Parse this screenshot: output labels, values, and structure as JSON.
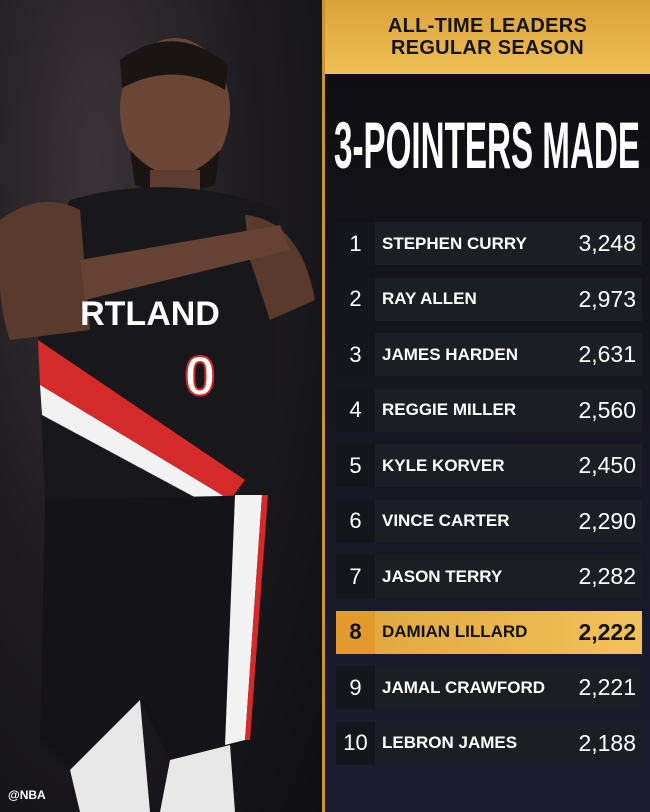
{
  "watermark": "@NBA",
  "jersey": {
    "city": "RTLAND",
    "number": "0"
  },
  "header": {
    "line1": "ALL-TIME LEADERS",
    "line2": "REGULAR SEASON"
  },
  "title": "3-POINTERS MADE",
  "colors": {
    "gold": "#efbf55",
    "panel": "#15151c",
    "highlight": "#e0a53d"
  },
  "leaders": [
    {
      "rank": "1",
      "name": "STEPHEN CURRY",
      "value": "3,248"
    },
    {
      "rank": "2",
      "name": "RAY ALLEN",
      "value": "2,973"
    },
    {
      "rank": "3",
      "name": "JAMES HARDEN",
      "value": "2,631"
    },
    {
      "rank": "4",
      "name": "REGGIE MILLER",
      "value": "2,560"
    },
    {
      "rank": "5",
      "name": "KYLE KORVER",
      "value": "2,450"
    },
    {
      "rank": "6",
      "name": "VINCE CARTER",
      "value": "2,290"
    },
    {
      "rank": "7",
      "name": "JASON TERRY",
      "value": "2,282"
    },
    {
      "rank": "8",
      "name": "DAMIAN LILLARD",
      "value": "2,222",
      "highlight": true
    },
    {
      "rank": "9",
      "name": "JAMAL CRAWFORD",
      "value": "2,221"
    },
    {
      "rank": "10",
      "name": "LEBRON JAMES",
      "value": "2,188"
    }
  ]
}
